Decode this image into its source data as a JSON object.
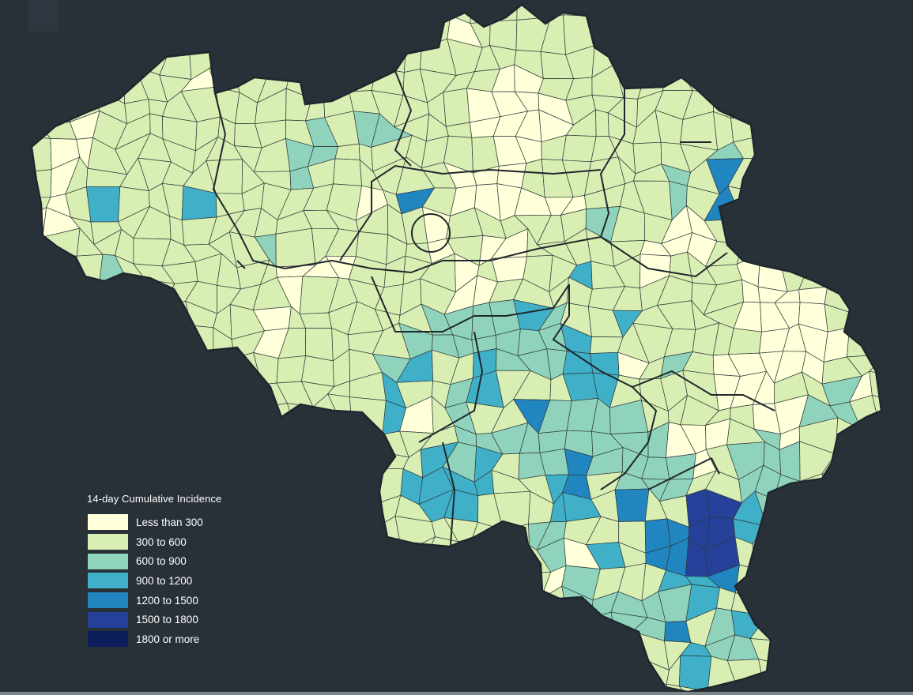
{
  "legend": {
    "title": "14-day Cumulative Incidence",
    "items": [
      {
        "label": "Less than 300",
        "color": "#ffffd9"
      },
      {
        "label": "300 to 600",
        "color": "#d8eeb2"
      },
      {
        "label": "600 to 900",
        "color": "#8fd3bd"
      },
      {
        "label": "900 to 1200",
        "color": "#40b0c8"
      },
      {
        "label": "1200 to 1500",
        "color": "#2185c0"
      },
      {
        "label": "1500 to 1800",
        "color": "#25419a"
      },
      {
        "label": "1800 or more",
        "color": "#0b1d5a"
      }
    ]
  },
  "colors": {
    "background": "#283038",
    "border": "#2f3a3c",
    "province_border": "#1f272d"
  }
}
